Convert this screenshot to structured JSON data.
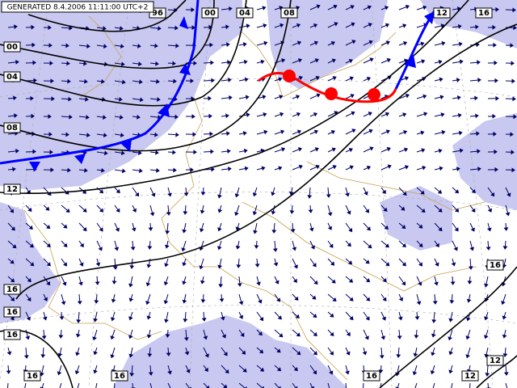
{
  "header": {
    "generated": "GENERATED 8.4.2006 11:11:00 UTC+2"
  },
  "isobar_labels": [
    {
      "text": "96"
    },
    {
      "text": "00"
    },
    {
      "text": "04"
    },
    {
      "text": "08"
    },
    {
      "text": "12"
    },
    {
      "text": "16"
    },
    {
      "text": "00"
    },
    {
      "text": "04"
    },
    {
      "text": "08"
    },
    {
      "text": "12"
    },
    {
      "text": "16"
    },
    {
      "text": "16"
    },
    {
      "text": "16"
    },
    {
      "text": "16"
    },
    {
      "text": "16"
    },
    {
      "text": "16"
    },
    {
      "text": "12"
    },
    {
      "text": "16"
    },
    {
      "text": "12"
    }
  ]
}
